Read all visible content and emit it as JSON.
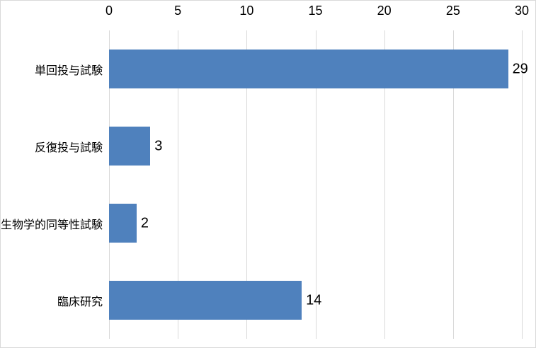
{
  "chart_data": {
    "type": "bar",
    "orientation": "horizontal",
    "title": "",
    "xlabel": "",
    "ylabel": "",
    "categories": [
      "単回投与試験",
      "反復投与試験",
      "生物学的同等性試験",
      "臨床研究"
    ],
    "values": [
      29,
      3,
      2,
      14
    ],
    "data_labels": [
      "29",
      "3",
      "2",
      "14"
    ],
    "x_ticks": [
      0,
      5,
      10,
      15,
      20,
      25,
      30
    ],
    "xlim": [
      0,
      30
    ],
    "axis_position": "top",
    "grid": "vertical-only",
    "legend": "none",
    "bar_color": "#4f81bd",
    "gridline_color": "#d9d9d9",
    "border_color": "#d9d9d9",
    "background_color": "#ffffff",
    "text_color": "#000000"
  }
}
